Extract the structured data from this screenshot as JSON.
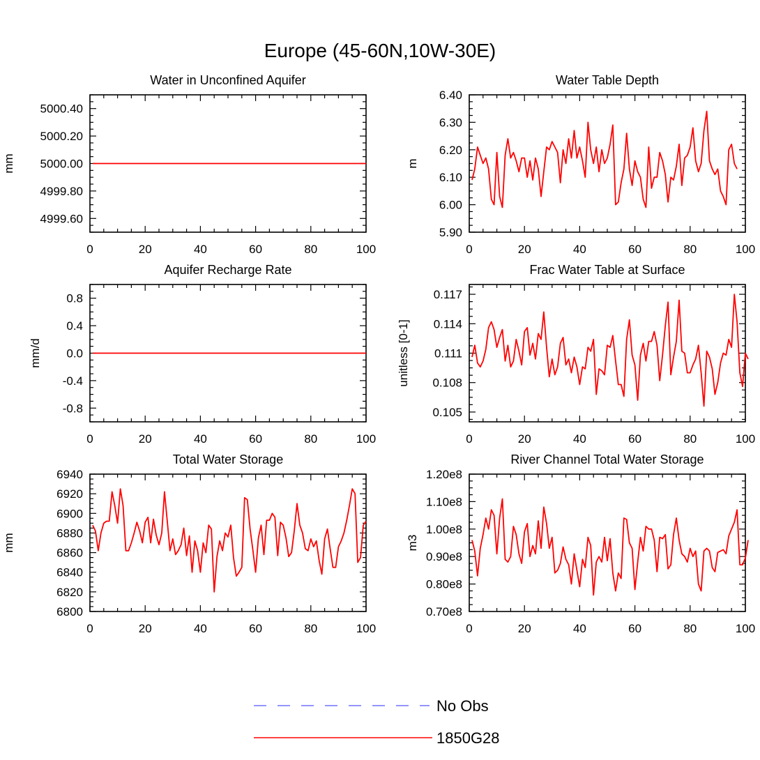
{
  "title": "Europe (45-60N,10W-30E)",
  "colors": {
    "series": "#ff0000",
    "obs": "#7070ff",
    "axis": "#000000"
  },
  "legend": [
    {
      "label": "No Obs",
      "style": "dashed",
      "color": "#7070ff"
    },
    {
      "label": "1850G28",
      "style": "solid",
      "color": "#ff0000"
    }
  ],
  "chart_data": [
    {
      "type": "line",
      "title": "Water in Unconfined Aquifer",
      "ylabel": "mm",
      "xlim": [
        0,
        100
      ],
      "xticks": [
        "0",
        "20",
        "40",
        "60",
        "80",
        "100"
      ],
      "ylim": [
        4999.5,
        5000.5
      ],
      "yticks": [
        "4999.60",
        "4999.80",
        "5000.00",
        "5000.20",
        "5000.40"
      ],
      "ytick_values": [
        4999.6,
        4999.8,
        5000.0,
        5000.2,
        5000.4
      ],
      "constant": 5000.0
    },
    {
      "type": "line",
      "title": "Water Table Depth",
      "ylabel": "m",
      "xlim": [
        0,
        100
      ],
      "xticks": [
        "0",
        "20",
        "40",
        "60",
        "80",
        "100"
      ],
      "ylim": [
        5.9,
        6.4
      ],
      "yticks": [
        "5.90",
        "6.00",
        "6.10",
        "6.20",
        "6.30",
        "6.40"
      ],
      "ytick_values": [
        5.9,
        6.0,
        6.1,
        6.2,
        6.3,
        6.4
      ],
      "values": [
        6.09,
        6.13,
        6.21,
        6.18,
        6.15,
        6.17,
        6.13,
        6.02,
        6.0,
        6.19,
        6.03,
        5.99,
        6.18,
        6.24,
        6.17,
        6.19,
        6.16,
        6.12,
        6.17,
        6.17,
        6.1,
        6.16,
        6.09,
        6.17,
        6.13,
        6.03,
        6.12,
        6.21,
        6.2,
        6.23,
        6.21,
        6.19,
        6.08,
        6.2,
        6.15,
        6.24,
        6.17,
        6.27,
        6.17,
        6.21,
        6.16,
        6.1,
        6.3,
        6.2,
        6.15,
        6.21,
        6.12,
        6.2,
        6.15,
        6.17,
        6.22,
        6.29,
        6.0,
        6.01,
        6.08,
        6.13,
        6.26,
        6.13,
        6.07,
        6.16,
        6.12,
        6.1,
        6.02,
        5.99,
        6.21,
        6.06,
        6.1,
        6.1,
        6.19,
        6.16,
        6.11,
        6.01,
        6.1,
        6.09,
        6.14,
        6.22,
        6.07,
        6.17,
        6.18,
        6.21,
        6.28,
        6.16,
        6.12,
        6.15,
        6.27,
        6.34,
        6.16,
        6.13,
        6.11,
        6.13,
        6.05,
        6.03,
        6.0,
        6.2,
        6.22,
        6.15,
        6.13
      ]
    },
    {
      "type": "line",
      "title": "Aquifer Recharge Rate",
      "ylabel": "mm/d",
      "xlim": [
        0,
        100
      ],
      "xticks": [
        "0",
        "20",
        "40",
        "60",
        "80",
        "100"
      ],
      "ylim": [
        -1.0,
        1.0
      ],
      "yticks": [
        "-0.8",
        "-0.4",
        "0.0",
        "0.4",
        "0.8"
      ],
      "ytick_values": [
        -0.8,
        -0.4,
        0.0,
        0.4,
        0.8
      ],
      "constant": 0.0
    },
    {
      "type": "line",
      "title": "Frac Water Table at Surface",
      "ylabel": "unitless [0-1]",
      "xlim": [
        0,
        100
      ],
      "xticks": [
        "0",
        "20",
        "40",
        "60",
        "80",
        "100"
      ],
      "ylim": [
        0.104,
        0.118
      ],
      "yticks": [
        "0.105",
        "0.108",
        "0.111",
        "0.114",
        "0.117"
      ],
      "ytick_values": [
        0.105,
        0.108,
        0.111,
        0.114,
        0.117
      ],
      "values": [
        0.1106,
        0.1118,
        0.11,
        0.1096,
        0.1102,
        0.1114,
        0.1136,
        0.1142,
        0.1134,
        0.1116,
        0.1126,
        0.1134,
        0.1102,
        0.1118,
        0.1096,
        0.1102,
        0.1124,
        0.1112,
        0.1098,
        0.1132,
        0.1136,
        0.1108,
        0.112,
        0.1104,
        0.113,
        0.1124,
        0.1152,
        0.1116,
        0.1086,
        0.1104,
        0.1088,
        0.1096,
        0.112,
        0.1126,
        0.1098,
        0.1104,
        0.109,
        0.1106,
        0.1096,
        0.1078,
        0.1096,
        0.1094,
        0.1116,
        0.1112,
        0.1124,
        0.1068,
        0.1094,
        0.1092,
        0.1088,
        0.1118,
        0.1116,
        0.1128,
        0.1102,
        0.1078,
        0.1078,
        0.1066,
        0.1124,
        0.1144,
        0.1108,
        0.1098,
        0.1062,
        0.1108,
        0.112,
        0.1102,
        0.1122,
        0.1122,
        0.1132,
        0.1118,
        0.1082,
        0.1108,
        0.1138,
        0.1162,
        0.1088,
        0.1106,
        0.1122,
        0.1164,
        0.1112,
        0.111,
        0.109,
        0.109,
        0.1098,
        0.1104,
        0.1118,
        0.109,
        0.1056,
        0.1112,
        0.1106,
        0.1094,
        0.1068,
        0.108,
        0.11,
        0.111,
        0.1108,
        0.1124,
        0.1116,
        0.117,
        0.1142,
        0.109,
        0.1076,
        0.111,
        0.1104
      ]
    },
    {
      "type": "line",
      "title": "Total Water Storage",
      "ylabel": "mm",
      "xlim": [
        0,
        100
      ],
      "xticks": [
        "0",
        "20",
        "40",
        "60",
        "80",
        "100"
      ],
      "ylim": [
        6800,
        6940
      ],
      "yticks": [
        "6800",
        "6820",
        "6840",
        "6860",
        "6880",
        "6900",
        "6920",
        "6940"
      ],
      "ytick_values": [
        6800,
        6820,
        6840,
        6860,
        6880,
        6900,
        6920,
        6940
      ],
      "values": [
        6888,
        6882,
        6862,
        6880,
        6890,
        6892,
        6892,
        6922,
        6908,
        6890,
        6925,
        6908,
        6862,
        6862,
        6870,
        6880,
        6891,
        6882,
        6870,
        6891,
        6896,
        6870,
        6894,
        6878,
        6868,
        6880,
        6922,
        6892,
        6862,
        6874,
        6858,
        6862,
        6868,
        6885,
        6857,
        6877,
        6840,
        6872,
        6862,
        6840,
        6870,
        6860,
        6888,
        6884,
        6820,
        6856,
        6872,
        6862,
        6880,
        6876,
        6888,
        6855,
        6836,
        6840,
        6845,
        6916,
        6914,
        6884,
        6863,
        6840,
        6875,
        6888,
        6858,
        6893,
        6893,
        6900,
        6896,
        6857,
        6891,
        6888,
        6875,
        6856,
        6860,
        6882,
        6910,
        6888,
        6880,
        6864,
        6862,
        6874,
        6866,
        6872,
        6852,
        6838,
        6874,
        6884,
        6864,
        6845,
        6845,
        6866,
        6872,
        6880,
        6893,
        6908,
        6925,
        6920,
        6850,
        6855,
        6888,
        6892
      ]
    },
    {
      "type": "line",
      "title": "River Channel Total Water Storage",
      "ylabel": "m3",
      "xlim": [
        0,
        100
      ],
      "xticks": [
        "0",
        "20",
        "40",
        "60",
        "80",
        "100"
      ],
      "ylim": [
        70000000.0,
        120000000.0
      ],
      "yticks": [
        "0.70e8",
        "0.80e8",
        "0.90e8",
        "1.00e8",
        "1.10e8",
        "1.20e8"
      ],
      "ytick_values": [
        70000000.0,
        80000000.0,
        90000000.0,
        100000000.0,
        110000000.0,
        120000000.0
      ],
      "values": [
        96000000.0,
        92000000.0,
        83000000.0,
        93000000.0,
        98000000.0,
        104000000.0,
        100000000.0,
        107000000.0,
        105000000.0,
        91000000.0,
        104000000.0,
        111000000.0,
        89000000.0,
        88000000.0,
        90000000.0,
        101000000.0,
        98000000.0,
        91000000.0,
        87500000.0,
        99000000.0,
        102000000.0,
        90000000.0,
        94000000.0,
        91000000.0,
        103000000.0,
        93000000.0,
        108000000.0,
        102000000.0,
        93000000.0,
        97000000.0,
        84000000.0,
        85000000.0,
        87500000.0,
        93500000.0,
        89000000.0,
        87000000.0,
        80000000.0,
        91000000.0,
        85000000.0,
        79000000.0,
        89000000.0,
        86000000.0,
        97000000.0,
        94000000.0,
        76000000.0,
        88000000.0,
        90000000.0,
        88000000.0,
        97000000.0,
        88500000.0,
        96500000.0,
        84000000.0,
        77500000.0,
        84000000.0,
        82000000.0,
        104000000.0,
        103500000.0,
        95000000.0,
        93000000.0,
        78000000.0,
        88000000.0,
        97000000.0,
        92000000.0,
        101000000.0,
        100000000.0,
        100000000.0,
        96000000.0,
        84500000.0,
        97000000.0,
        96500000.0,
        98000000.0,
        85500000.0,
        87000000.0,
        98000000.0,
        104000000.0,
        96000000.0,
        91000000.0,
        90000000.0,
        88000000.0,
        93000000.0,
        90000000.0,
        92000000.0,
        80000000.0,
        77500000.0,
        92000000.0,
        93000000.0,
        92000000.0,
        86000000.0,
        84500000.0,
        91500000.0,
        92000000.0,
        92500000.0,
        91000000.0,
        97500000.0,
        100000000.0,
        102500000.0,
        107000000.0,
        87000000.0,
        87000000.0,
        89500000.0,
        96000000.0
      ]
    }
  ]
}
